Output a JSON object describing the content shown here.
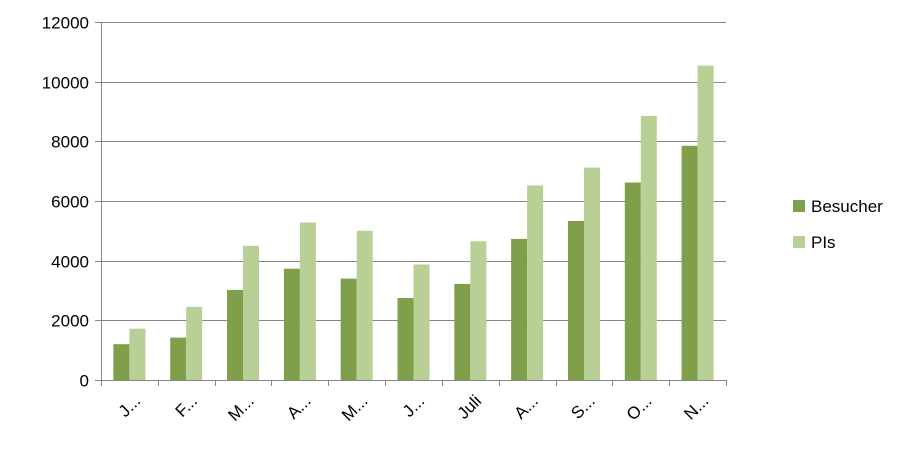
{
  "chart_data": {
    "type": "bar",
    "categories": [
      "J...",
      "F...",
      "M...",
      "A...",
      "M...",
      "J...",
      "Juli",
      "A...",
      "S...",
      "O...",
      "N..."
    ],
    "series": [
      {
        "name": "Besucher",
        "color": "#7f9f4a",
        "values": [
          1200,
          1420,
          3020,
          3730,
          3400,
          2750,
          3220,
          4730,
          5330,
          6620,
          7850
        ]
      },
      {
        "name": "PIs",
        "color": "#b8cf96",
        "values": [
          1720,
          2450,
          4500,
          5280,
          5000,
          3870,
          4650,
          6520,
          7120,
          8850,
          10540
        ]
      }
    ],
    "ylim": [
      0,
      12000
    ],
    "yticks": [
      0,
      2000,
      4000,
      6000,
      8000,
      10000,
      12000
    ],
    "grid": true,
    "legend": "right",
    "title": "",
    "xlabel": "",
    "ylabel": ""
  }
}
